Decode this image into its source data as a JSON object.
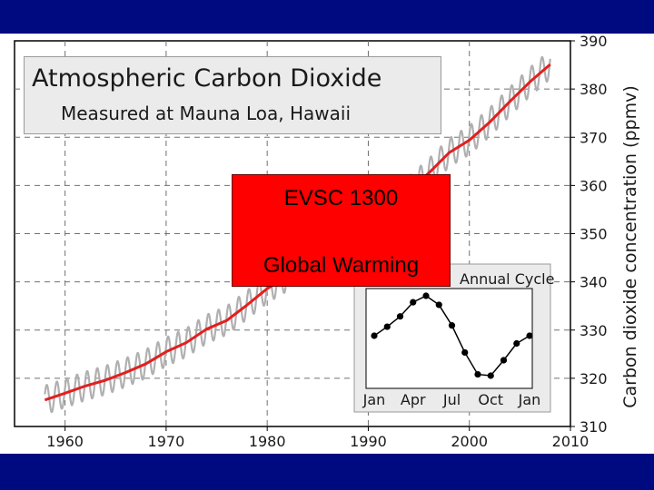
{
  "slide": {
    "band_color": "#000a80",
    "overlay_title": "EVSC 1300",
    "overlay_subtitle": "Global Warming",
    "overlay_color": "#ff0000"
  },
  "chart_data": [
    {
      "type": "line",
      "title": "Atmospheric Carbon Dioxide",
      "subtitle": "Measured at Mauna Loa, Hawaii",
      "xlabel": "",
      "ylabel": "Carbon dioxide concentration (ppmv)",
      "xlim": [
        1955,
        2010
      ],
      "ylim": [
        310,
        390
      ],
      "x_ticks": [
        1960,
        1970,
        1980,
        1990,
        2000,
        2010
      ],
      "y_ticks": [
        310,
        320,
        330,
        340,
        350,
        360,
        370,
        380,
        390
      ],
      "grid": true,
      "colors": {
        "trend": "#e02020",
        "monthly": "#b0b0b0",
        "grid": "#707070"
      },
      "series": [
        {
          "style": "smoothed trend",
          "x": [
            1958,
            1960,
            1962,
            1964,
            1966,
            1968,
            1970,
            1972,
            1974,
            1976,
            1978,
            1980,
            1982,
            1984,
            1986,
            1988,
            1990,
            1992,
            1994,
            1996,
            1998,
            2000,
            2002,
            2004,
            2006,
            2008
          ],
          "y": [
            315.5,
            316.9,
            318.4,
            319.6,
            321.2,
            323.0,
            325.5,
            327.4,
            330.2,
            332.0,
            335.2,
            338.6,
            341.1,
            344.3,
            347.1,
            351.5,
            354.1,
            356.2,
            358.9,
            362.6,
            366.8,
            369.4,
            373.1,
            377.4,
            381.5,
            385.1
          ]
        },
        {
          "style": "monthly values (seasonal cycle)",
          "seasonal_amplitude_ppmv": 3
        }
      ]
    },
    {
      "type": "line",
      "title": "Annual Cycle",
      "x": [
        "Jan",
        "Feb",
        "Mar",
        "Apr",
        "May",
        "Jun",
        "Jul",
        "Aug",
        "Sep",
        "Oct",
        "Nov",
        "Dec",
        "Jan"
      ],
      "x_ticks": [
        "Jan",
        "Apr",
        "Jul",
        "Oct",
        "Jan"
      ],
      "y": [
        0.0,
        0.7,
        1.5,
        2.6,
        3.1,
        2.4,
        0.8,
        -1.3,
        -3.0,
        -3.1,
        -1.9,
        -0.6,
        0.0
      ],
      "y_unit": "ppmv relative to annual mean",
      "markers": true
    }
  ]
}
